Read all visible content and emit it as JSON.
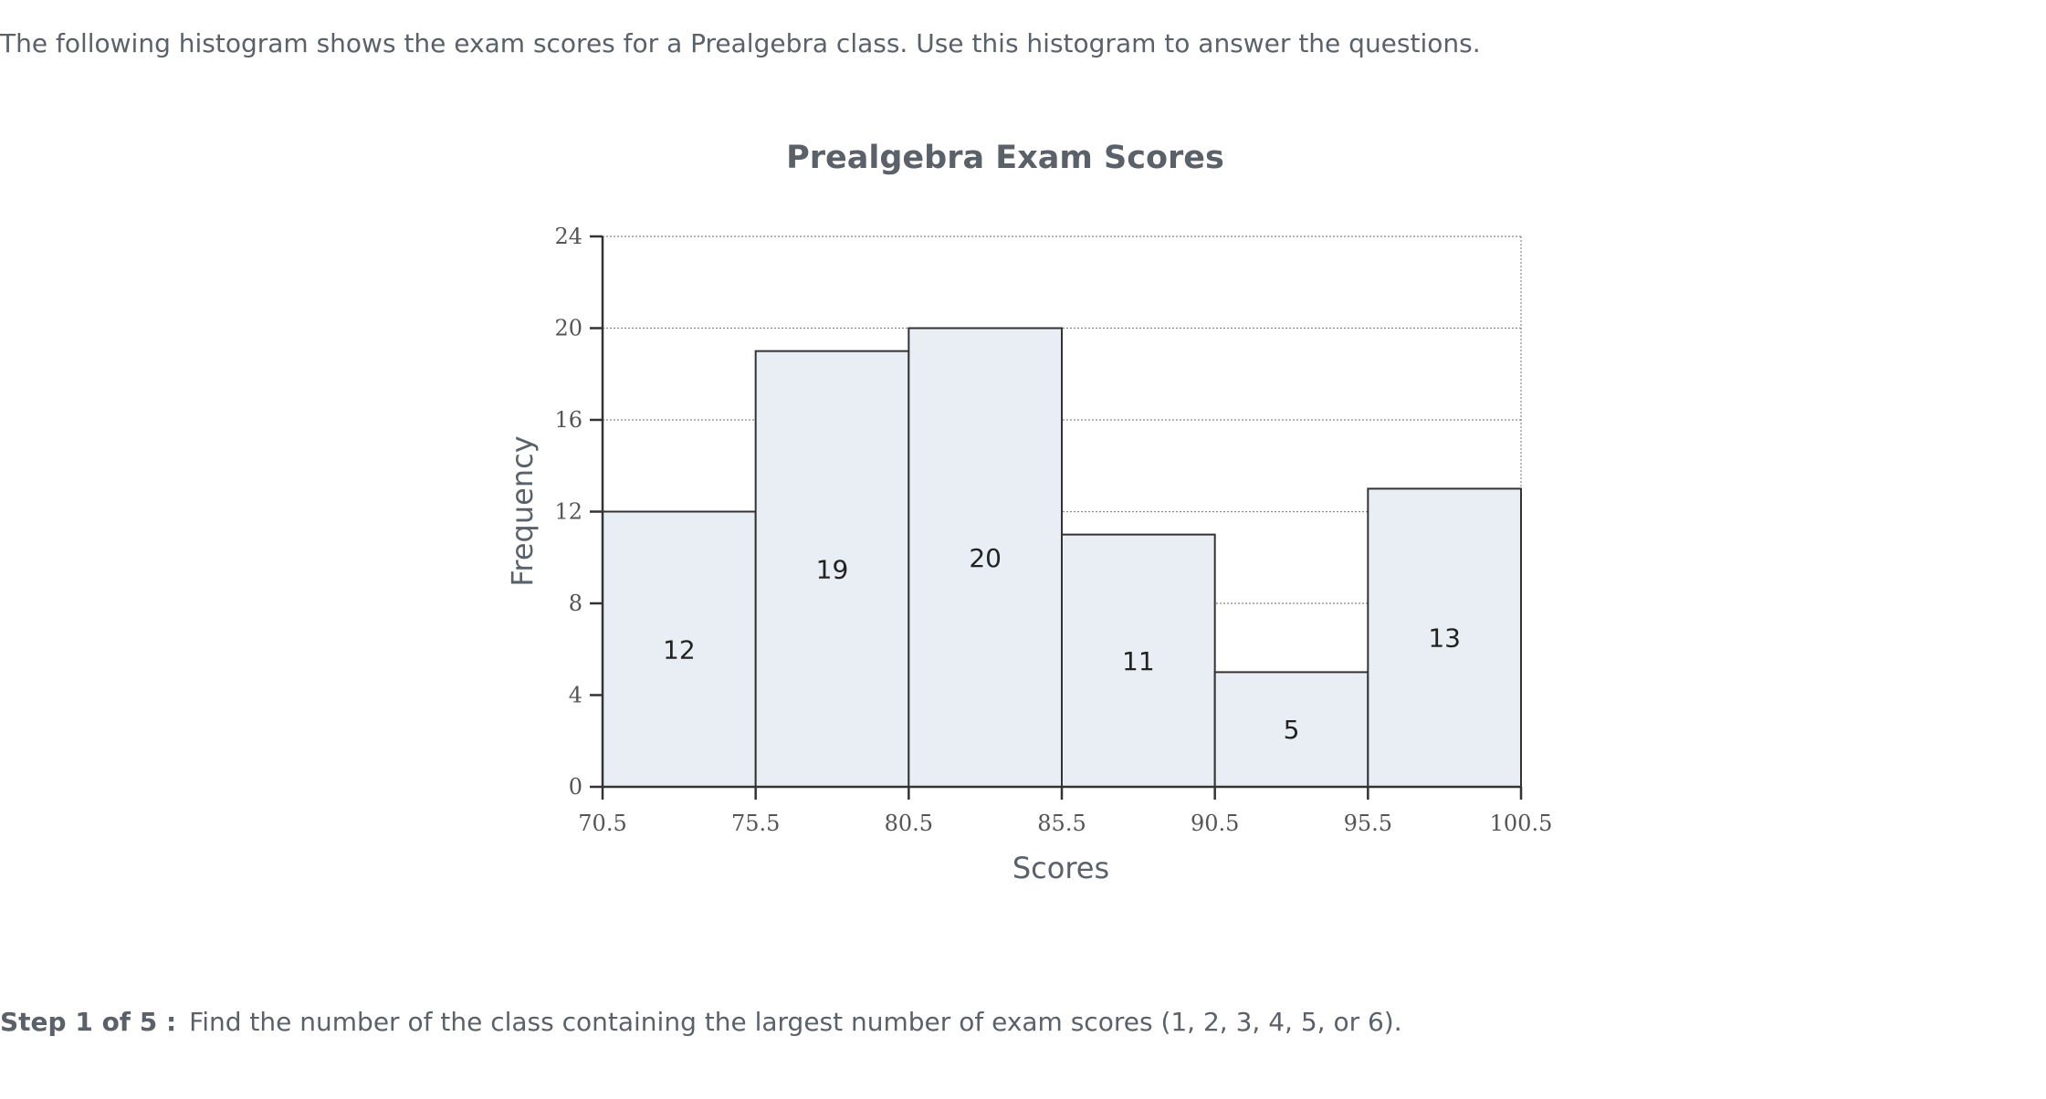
{
  "intro_text": "The following histogram shows the exam scores for a Prealgebra class. Use this histogram to answer the questions.",
  "step": {
    "label": "Step 1 of 5 :",
    "question": "Find the number of the class containing the largest number of exam scores (1, 2, 3, 4, 5, or 6)."
  },
  "chart_data": {
    "type": "bar",
    "title": "Prealgebra Exam Scores",
    "xlabel": "Scores",
    "ylabel": "Frequency",
    "class_boundaries": [
      70.5,
      75.5,
      80.5,
      85.5,
      90.5,
      95.5,
      100.5
    ],
    "x_tick_labels": [
      "70.5",
      "75.5",
      "80.5",
      "85.5",
      "90.5",
      "95.5",
      "100.5"
    ],
    "values": [
      12,
      19,
      20,
      11,
      5,
      13
    ],
    "ylim": [
      0,
      24
    ],
    "y_ticks": [
      0,
      4,
      8,
      12,
      16,
      20,
      24
    ],
    "y_tick_labels": [
      "0",
      "4",
      "8",
      "12",
      "16",
      "20",
      "24"
    ],
    "grid": "horizontal dotted",
    "bar_color": "#e8eef4",
    "bar_edge_color": "#333333"
  }
}
